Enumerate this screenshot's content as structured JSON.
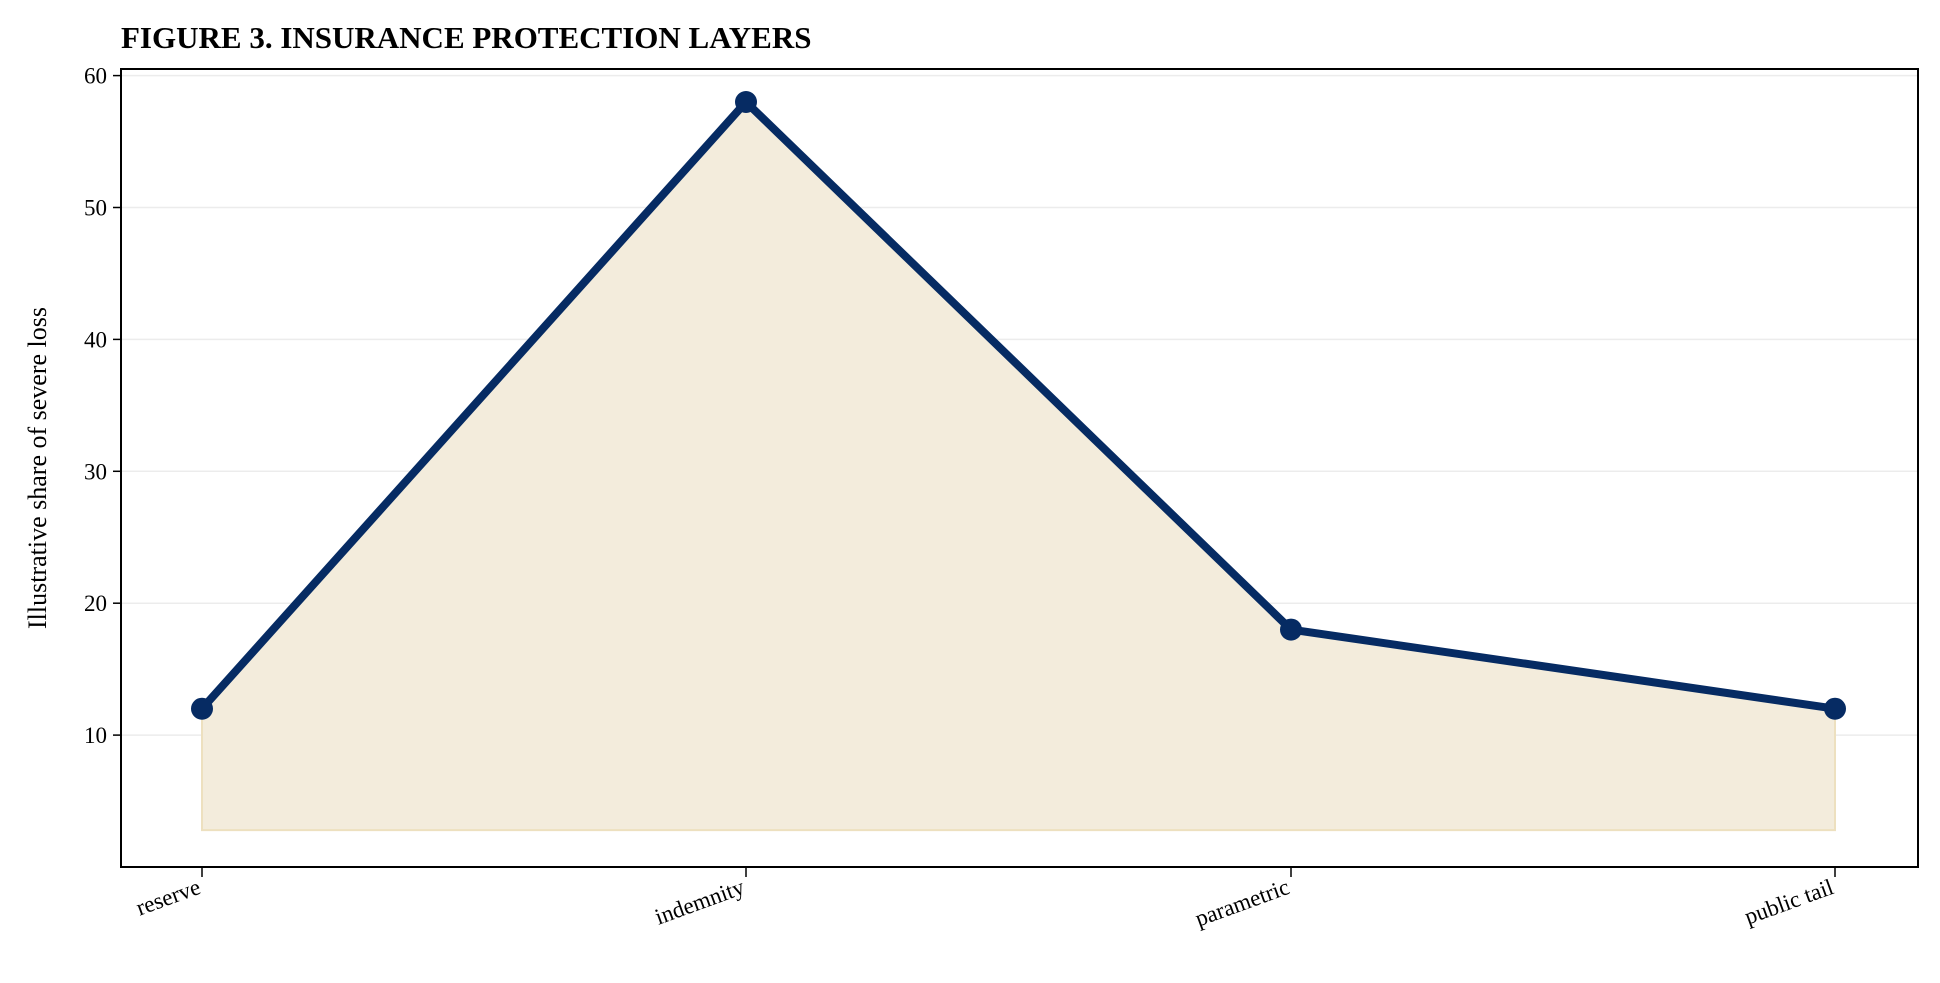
{
  "chart_data": {
    "type": "area",
    "title": "FIGURE 3. INSURANCE PROTECTION LAYERS",
    "xlabel": "",
    "ylabel": "Illustrative share of severe loss",
    "categories": [
      "reserve",
      "indemnity",
      "parametric",
      "public tail"
    ],
    "series": [
      {
        "values": [
          12,
          58,
          18,
          12
        ]
      }
    ],
    "fill_baseline": 2.8,
    "ylim": [
      0,
      60.5
    ],
    "yticks": [
      10,
      20,
      30,
      40,
      50,
      60
    ],
    "grid": "y",
    "legend": "none",
    "colors": {
      "line": "#062b63",
      "fill": "#f3ecdc",
      "fill_edge": "#ede0bf",
      "grid": "#ececec",
      "axis": "#000000"
    }
  }
}
